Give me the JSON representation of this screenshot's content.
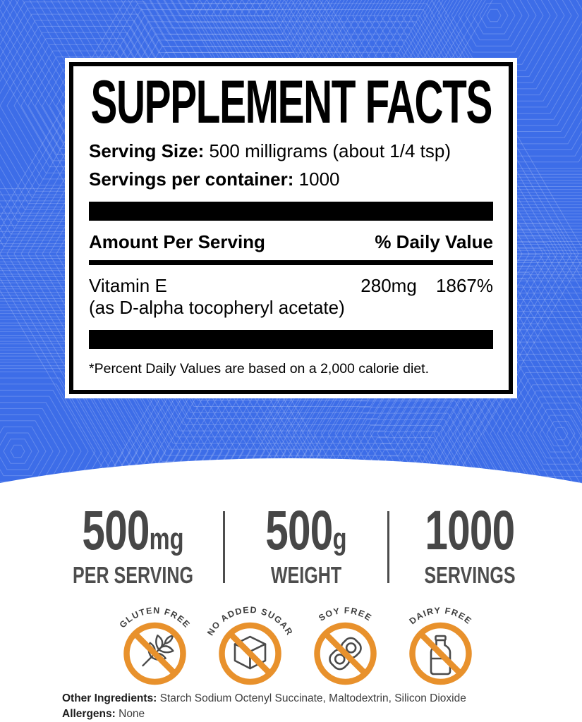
{
  "panel": {
    "title": "SUPPLEMENT FACTS",
    "serving_size_label": "Serving Size:",
    "serving_size_value": " 500 milligrams (about 1/4 tsp)",
    "servings_label": "Servings per container:",
    "servings_value": " 1000",
    "amount_header": "Amount Per Serving",
    "dv_header": "% Daily Value",
    "nutrient": {
      "name": "Vitamin E",
      "detail": "(as D-alpha tocopheryl acetate)",
      "amount": "280mg",
      "daily_value": "1867%"
    },
    "footnote": "*Percent Daily Values are based on a 2,000 calorie diet."
  },
  "stats": [
    {
      "value": "500",
      "unit": "mg",
      "label": "PER SERVING"
    },
    {
      "value": "500",
      "unit": "g",
      "label": "WEIGHT"
    },
    {
      "value": "1000",
      "unit": "",
      "label": "SERVINGS"
    }
  ],
  "badges": [
    {
      "label": "GLUTEN FREE",
      "icon": "wheat-icon"
    },
    {
      "label": "NO ADDED SUGAR",
      "icon": "sugar-cube-icon"
    },
    {
      "label": "SOY FREE",
      "icon": "soy-pod-icon"
    },
    {
      "label": "DAIRY FREE",
      "icon": "milk-bottle-icon"
    }
  ],
  "footer": {
    "other_ingredients_label": "Other Ingredients:",
    "other_ingredients_value": " Starch Sodium Octenyl Succinate, Maltodextrin, Silicon Dioxide",
    "allergens_label": "Allergens:",
    "allergens_value": " None"
  },
  "colors": {
    "background_blue": "#3D6DE8",
    "pattern_line_opacity": "0.20",
    "badge_orange": "#E8912C",
    "icon_gray": "#4A4A4A",
    "stat_gray": "#4D4D4D"
  }
}
